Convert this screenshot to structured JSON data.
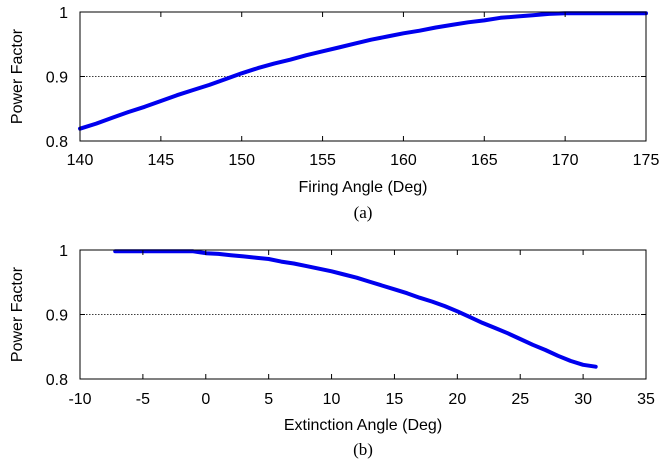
{
  "chart_data": [
    {
      "type": "line",
      "xlabel": "Firing Angle (Deg)",
      "ylabel": "Power Factor",
      "caption": "(a)",
      "xlim": [
        140,
        175
      ],
      "ylim": [
        0.8,
        1.0
      ],
      "xticks": [
        "140",
        "145",
        "150",
        "155",
        "160",
        "165",
        "170",
        "175"
      ],
      "yticks": [
        "0.8",
        "0.9",
        "1"
      ],
      "grid": "horizontal dotted at 0.9",
      "series": [
        {
          "color": "#0000ee",
          "x": [
            140,
            141,
            142,
            143,
            144,
            145,
            146,
            147,
            148,
            149,
            150,
            151,
            152,
            153,
            154,
            155,
            156,
            157,
            158,
            159,
            160,
            161,
            162,
            163,
            164,
            165,
            166,
            167,
            168,
            169,
            170,
            171,
            172,
            173,
            174,
            175
          ],
          "y": [
            0.819,
            0.827,
            0.836,
            0.845,
            0.853,
            0.862,
            0.871,
            0.879,
            0.887,
            0.896,
            0.905,
            0.913,
            0.92,
            0.926,
            0.933,
            0.939,
            0.945,
            0.951,
            0.957,
            0.962,
            0.967,
            0.971,
            0.976,
            0.98,
            0.984,
            0.987,
            0.991,
            0.993,
            0.995,
            0.997,
            0.998,
            0.998,
            0.998,
            0.998,
            0.998,
            0.998
          ]
        }
      ]
    },
    {
      "type": "line",
      "xlabel": "Extinction Angle (Deg)",
      "ylabel": "Power Factor",
      "caption": "(b)",
      "xlim": [
        -10,
        35
      ],
      "ylim": [
        0.8,
        1.0
      ],
      "xticks": [
        "-10",
        "-5",
        "0",
        "5",
        "10",
        "15",
        "20",
        "25",
        "30",
        "35"
      ],
      "yticks": [
        "0.8",
        "0.9",
        "1"
      ],
      "grid": "horizontal dotted at 0.9",
      "series": [
        {
          "color": "#0000ee",
          "x": [
            -7.2,
            -5,
            -3,
            -1,
            0,
            1,
            2,
            3,
            4,
            5,
            6,
            7,
            8,
            9,
            10,
            11,
            12,
            13,
            14,
            15,
            16,
            17,
            18,
            19,
            20,
            21,
            22,
            23,
            24,
            25,
            26,
            27,
            28,
            29,
            30,
            31
          ],
          "y": [
            0.998,
            0.998,
            0.998,
            0.998,
            0.995,
            0.994,
            0.992,
            0.99,
            0.988,
            0.986,
            0.982,
            0.979,
            0.975,
            0.971,
            0.967,
            0.962,
            0.957,
            0.951,
            0.945,
            0.939,
            0.933,
            0.926,
            0.92,
            0.913,
            0.905,
            0.896,
            0.887,
            0.879,
            0.871,
            0.862,
            0.853,
            0.845,
            0.836,
            0.828,
            0.822,
            0.819
          ]
        }
      ]
    }
  ]
}
